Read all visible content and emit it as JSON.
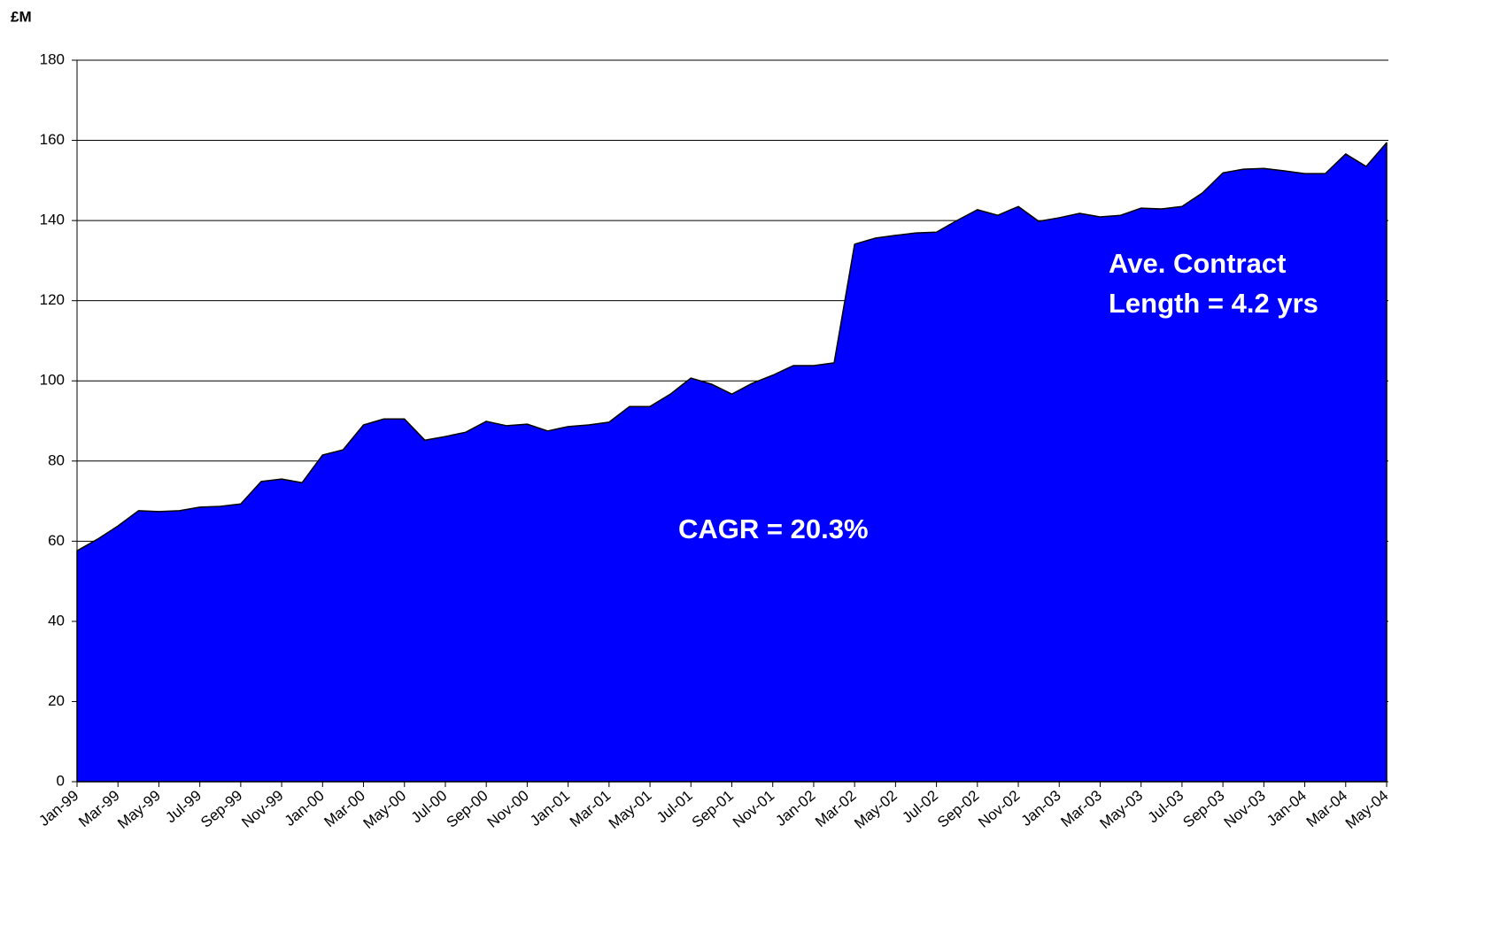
{
  "chart_data": {
    "type": "area",
    "y_label": "£M",
    "categories": [
      "Jan-99",
      null,
      "Mar-99",
      null,
      "May-99",
      null,
      "Jul-99",
      null,
      "Sep-99",
      null,
      "Nov-99",
      null,
      "Jan-00",
      null,
      "Mar-00",
      null,
      "May-00",
      null,
      "Jul-00",
      null,
      "Sep-00",
      null,
      "Nov-00",
      null,
      "Jan-01",
      null,
      "Mar-01",
      null,
      "May-01",
      null,
      "Jul-01",
      null,
      "Sep-01",
      null,
      "Nov-01",
      null,
      "Jan-02",
      null,
      "Mar-02",
      null,
      "May-02",
      null,
      "Jul-02",
      null,
      "Sep-02",
      null,
      "Nov-02",
      null,
      "Jan-03",
      null,
      "Mar-03",
      null,
      "May-03",
      null,
      "Jul-03",
      null,
      "Sep-03",
      null,
      "Nov-03",
      null,
      "Jan-04",
      null,
      "Mar-04",
      null,
      "May-04"
    ],
    "values": [
      57.6,
      60.5,
      63.8,
      67.6,
      67.4,
      67.6,
      68.5,
      68.7,
      69.3,
      74.9,
      75.5,
      74.6,
      81.5,
      82.8,
      89,
      90.5,
      90.5,
      85.2,
      86.1,
      87.2,
      89.9,
      88.8,
      89.2,
      87.5,
      88.6,
      89,
      89.7,
      93.6,
      93.6,
      96.7,
      100.7,
      99.2,
      96.7,
      99.4,
      101.4,
      103.8,
      103.8,
      104.5,
      134.1,
      135.6,
      136.3,
      136.9,
      137.1,
      140,
      142.7,
      141.3,
      143.5,
      139.8,
      140.7,
      141.8,
      140.9,
      141.3,
      143.1,
      142.9,
      143.5,
      146.9,
      151.9,
      152.8,
      153,
      152.4,
      151.7,
      151.7,
      156.6,
      153.5,
      159.4
    ],
    "color": "#0000ff",
    "ylim": [
      0,
      180
    ],
    "yticks": [
      0,
      20,
      40,
      60,
      80,
      100,
      120,
      140,
      160,
      180
    ],
    "grid": true,
    "annotations": [
      "CAGR  = 20.3%",
      "Ave. Contract",
      "Length = 4.2 yrs"
    ]
  }
}
